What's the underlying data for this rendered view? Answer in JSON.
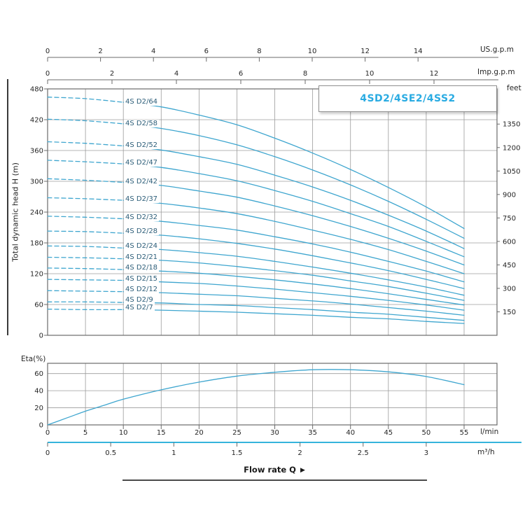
{
  "title_badge": "4SD2/4SE2/4SS2",
  "flow_rate": {
    "label": "Flow rate Q",
    "arrow": "▶"
  },
  "colors": {
    "curve": "#3fa6cf",
    "curve_label": "#2d5e79",
    "grid": "#9b9b9b",
    "border": "#6b6b6b",
    "text": "#262626",
    "title": "#29abe2",
    "m3h_line": "#35b4dc"
  },
  "axes": {
    "us_gpm": {
      "label": "US.g.p.m",
      "ticks": [
        0,
        2,
        4,
        6,
        8,
        10,
        12,
        14
      ]
    },
    "imp_gpm": {
      "label": "Imp.g.p.m",
      "ticks": [
        0,
        2,
        4,
        6,
        8,
        10,
        12
      ]
    },
    "head_m": {
      "label": "Total dynamic head H (m)",
      "ticks": [
        0,
        60,
        120,
        180,
        240,
        300,
        360,
        420,
        480
      ]
    },
    "head_feet": {
      "label": "feet",
      "ticks": [
        150,
        300,
        450,
        600,
        750,
        900,
        1050,
        1200,
        1350
      ]
    },
    "flow_lpm": {
      "label": "l/min",
      "ticks": [
        0,
        5,
        10,
        15,
        20,
        25,
        30,
        35,
        40,
        45,
        50,
        55
      ]
    },
    "flow_m3h": {
      "label": "m³/h",
      "ticks": [
        "0",
        "0.5",
        "1",
        "1.5",
        "2",
        "2.5",
        "3"
      ]
    },
    "eta_pct": {
      "label": "Eta(%)",
      "ticks": [
        0,
        20,
        40,
        60
      ]
    }
  },
  "chart_data": [
    {
      "type": "line",
      "title": "4SD2/4SE2/4SS2",
      "xlabel": "Flow rate Q",
      "ylabel": "Total dynamic head H (m)",
      "x_units": [
        "l/min",
        "m³/h",
        "US.g.p.m",
        "Imp.g.p.m"
      ],
      "y_units": [
        "m",
        "feet"
      ],
      "grid": true,
      "xlim_lpm": [
        0,
        59.4
      ],
      "ylim_m": [
        0,
        480
      ],
      "dashed_below_lpm": 10,
      "x_lpm": [
        0,
        5,
        10,
        15,
        20,
        25,
        30,
        35,
        40,
        45,
        50,
        55
      ],
      "series": [
        {
          "name": "4S D2/64",
          "values": [
            464,
            461,
            454,
            445,
            429,
            410,
            384,
            355,
            323,
            288,
            250,
            208
          ]
        },
        {
          "name": "4S D2/58",
          "values": [
            421,
            418,
            412,
            403,
            389,
            371,
            348,
            322,
            293,
            261,
            226,
            189
          ]
        },
        {
          "name": "4S D2/52",
          "values": [
            377,
            374,
            369,
            361,
            348,
            333,
            312,
            289,
            263,
            234,
            203,
            169
          ]
        },
        {
          "name": "4S D2/47",
          "values": [
            341,
            338,
            334,
            327,
            315,
            301,
            282,
            261,
            237,
            212,
            183,
            153
          ]
        },
        {
          "name": "4S D2/42",
          "values": [
            305,
            302,
            298,
            292,
            281,
            269,
            252,
            233,
            212,
            189,
            164,
            137
          ]
        },
        {
          "name": "4S D2/37",
          "values": [
            268,
            266,
            263,
            257,
            248,
            237,
            222,
            205,
            187,
            167,
            144,
            120
          ]
        },
        {
          "name": "4S D2/32",
          "values": [
            232,
            230,
            227,
            222,
            214,
            205,
            192,
            178,
            162,
            144,
            125,
            104
          ]
        },
        {
          "name": "4S D2/28",
          "values": [
            203,
            202,
            199,
            195,
            188,
            179,
            168,
            155,
            141,
            126,
            109,
            91
          ]
        },
        {
          "name": "4S D2/24",
          "values": [
            174,
            173,
            170,
            167,
            161,
            154,
            144,
            133,
            121,
            108,
            94,
            78
          ]
        },
        {
          "name": "4S D2/21",
          "values": [
            152,
            151,
            149,
            146,
            141,
            134,
            126,
            117,
            106,
            95,
            82,
            68
          ]
        },
        {
          "name": "4S D2/18",
          "values": [
            131,
            130,
            128,
            125,
            121,
            115,
            108,
            100,
            91,
            81,
            70,
            59
          ]
        },
        {
          "name": "4S D2/15",
          "values": [
            109,
            108,
            107,
            104,
            101,
            96,
            90,
            83,
            76,
            68,
            59,
            49
          ]
        },
        {
          "name": "4S D2/12",
          "values": [
            87,
            86,
            85,
            83,
            80,
            77,
            72,
            67,
            61,
            54,
            47,
            39
          ]
        },
        {
          "name": "4S D2/9",
          "values": [
            65,
            65,
            64,
            63,
            60,
            58,
            54,
            50,
            45,
            41,
            35,
            29
          ]
        },
        {
          "name": "4S D2/7",
          "values": [
            51,
            50,
            50,
            49,
            47,
            45,
            42,
            39,
            35,
            32,
            27,
            23
          ]
        }
      ]
    },
    {
      "type": "line",
      "name": "Efficiency",
      "ylabel": "Eta(%)",
      "grid": true,
      "ylim_pct": [
        0,
        72
      ],
      "xlim_lpm": [
        0,
        59.4
      ],
      "x_lpm": [
        0,
        2.5,
        5,
        7.5,
        10,
        15,
        20,
        25,
        30,
        35,
        40,
        45,
        50,
        55
      ],
      "values": [
        0,
        8,
        16,
        23,
        30,
        41,
        50,
        57,
        61.5,
        64.5,
        64.5,
        62,
        56.5,
        47
      ]
    }
  ]
}
